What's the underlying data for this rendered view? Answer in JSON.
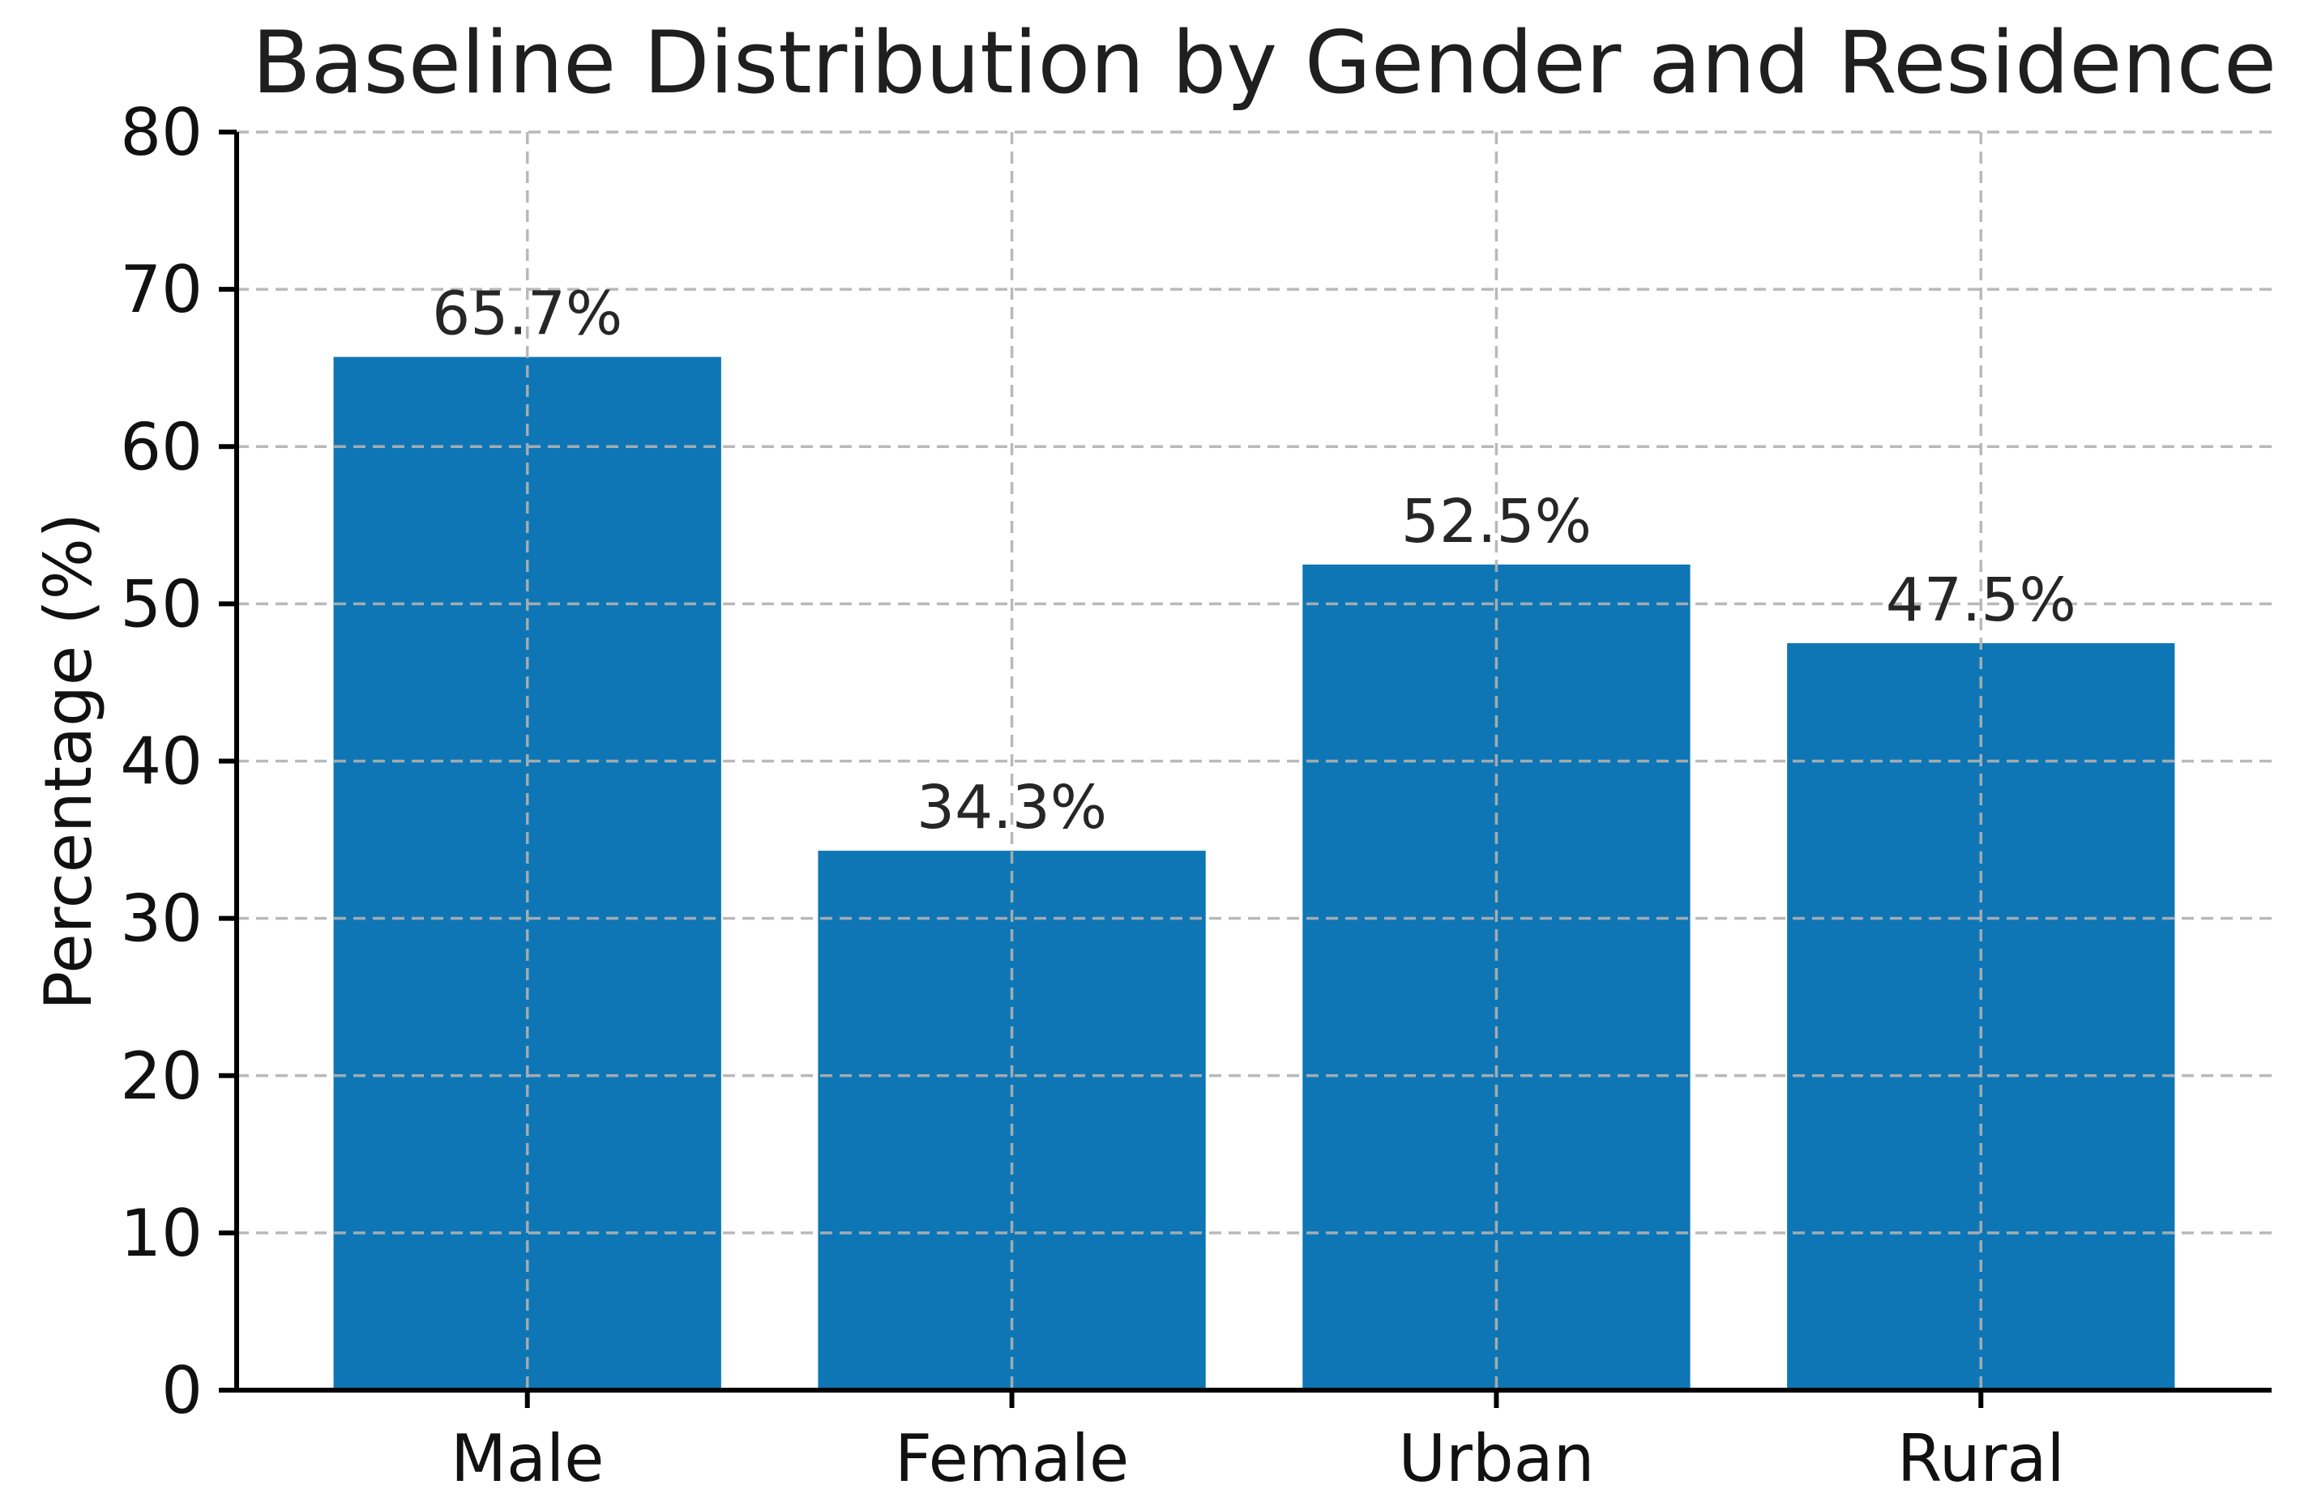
{
  "chart_data": {
    "type": "bar",
    "title": "Baseline Distribution by Gender and Residence",
    "xlabel": "",
    "ylabel": "Percentage (%)",
    "categories": [
      "Male",
      "Female",
      "Urban",
      "Rural"
    ],
    "values": [
      65.7,
      34.3,
      52.5,
      47.5
    ],
    "bar_labels": [
      "65.7%",
      "34.3%",
      "52.5%",
      "47.5%"
    ],
    "ylim": [
      0,
      80
    ],
    "yticks": [
      0,
      10,
      20,
      30,
      40,
      50,
      60,
      70,
      80
    ],
    "grid": {
      "horizontal": true,
      "vertical": true,
      "style": "dashed",
      "on_top_of_bars": true
    },
    "legend": null,
    "colors": {
      "bar": "#0e76b4",
      "grid": "#b2b2b2",
      "axis": "#000000",
      "text": "#111111",
      "title": "#1f1f1f",
      "background": "#ffffff"
    }
  }
}
